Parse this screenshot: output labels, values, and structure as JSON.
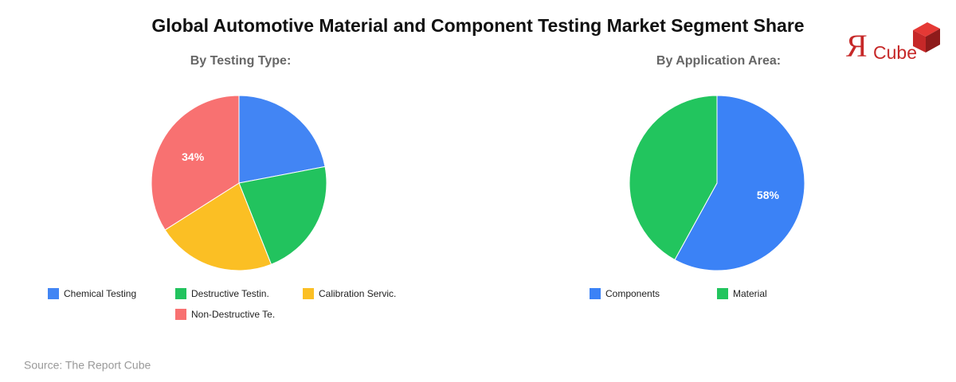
{
  "title": "Global Automotive Material and Component Testing Market Segment Share",
  "source": "Source: The Report Cube",
  "logo": {
    "mark": "Я",
    "text": "Cube"
  },
  "chart_data": [
    {
      "type": "pie",
      "title": "By Testing Type:",
      "categories": [
        "Chemical Testing",
        "Destructive Testin.",
        "Calibration Servic.",
        "Non-Destructive Te."
      ],
      "values": [
        22,
        22,
        22,
        34
      ],
      "value_labels": [
        null,
        null,
        null,
        "34%"
      ],
      "colors": [
        "#4285f4",
        "#22c35e",
        "#fbbf24",
        "#f87171"
      ]
    },
    {
      "type": "pie",
      "title": "By Application Area:",
      "categories": [
        "Components",
        "Material"
      ],
      "values": [
        58,
        42
      ],
      "value_labels": [
        "58%",
        null
      ],
      "colors": [
        "#3b82f6",
        "#22c55e"
      ]
    }
  ]
}
